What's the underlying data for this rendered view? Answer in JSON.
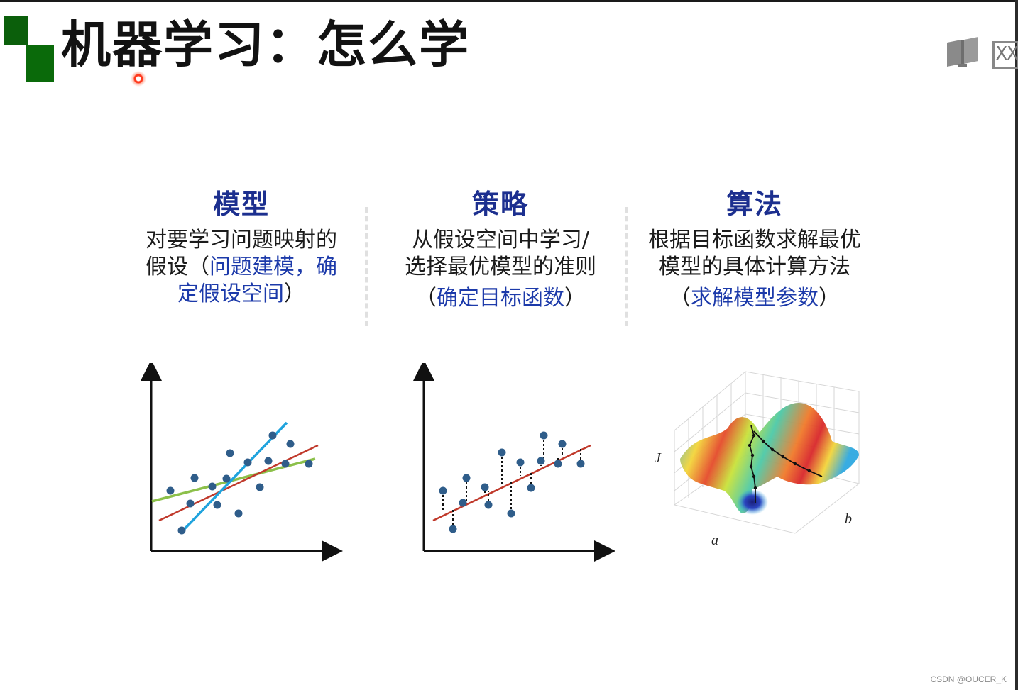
{
  "slide": {
    "title": "机器学习：怎么学",
    "accent_color": "#0a6a0a",
    "heading_color": "#1c2f8f",
    "highlight_color": "#1c3aaa"
  },
  "columns": [
    {
      "heading": "模型",
      "text_lines": [
        "对要学习问题映射的"
      ],
      "line2_plain": "假设（",
      "line2_blue": "问题建模，确",
      "line3_blue": "定假设空间",
      "line3_plain": "）"
    },
    {
      "heading": "策略",
      "text_lines": [
        "从假设空间中学习/",
        "选择最优模型的准则"
      ],
      "paren_open": "（",
      "blue": "确定目标函数",
      "paren_close": "）"
    },
    {
      "heading": "算法",
      "text_lines": [
        "根据目标函数求解最优",
        "模型的具体计算方法"
      ],
      "paren_open": "（",
      "blue": "求解模型参数",
      "paren_close": "）"
    }
  ],
  "figures": {
    "surface_labels": {
      "j": "J",
      "a": "a",
      "b": "b"
    }
  },
  "icons": [
    "book-icon",
    "xx-icon",
    "laser-pointer"
  ],
  "icon_text": {
    "xx": "XX"
  },
  "watermark": "CSDN @OUCER_K"
}
